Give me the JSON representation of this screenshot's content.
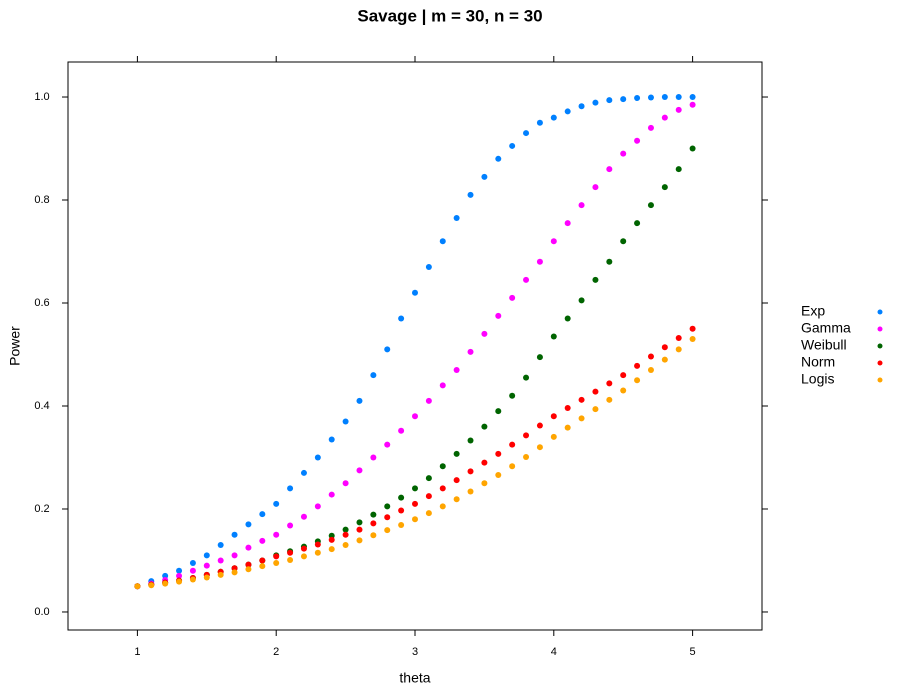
{
  "chart_data": {
    "type": "scatter",
    "title": "Savage | m = 30, n = 30",
    "x_label": "theta",
    "y_label": "Power",
    "x": [
      1.0,
      1.1,
      1.2,
      1.3,
      1.4,
      1.5,
      1.6,
      1.7,
      1.8,
      1.9,
      2.0,
      2.1,
      2.2,
      2.3,
      2.4,
      2.5,
      2.6,
      2.7,
      2.8,
      2.9,
      3.0,
      3.1,
      3.2,
      3.3,
      3.4,
      3.5,
      3.6,
      3.7,
      3.8,
      3.9,
      4.0,
      4.1,
      4.2,
      4.3,
      4.4,
      4.5,
      4.6,
      4.7,
      4.8,
      4.9,
      5.0
    ],
    "series": [
      {
        "name": "Exp",
        "color": "#0080ff",
        "values": [
          0.05,
          0.06,
          0.07,
          0.08,
          0.095,
          0.11,
          0.13,
          0.15,
          0.17,
          0.19,
          0.21,
          0.24,
          0.27,
          0.3,
          0.335,
          0.37,
          0.41,
          0.46,
          0.51,
          0.57,
          0.62,
          0.67,
          0.72,
          0.765,
          0.81,
          0.845,
          0.88,
          0.905,
          0.93,
          0.95,
          0.96,
          0.972,
          0.982,
          0.989,
          0.994,
          0.996,
          0.998,
          0.999,
          1.0,
          1.0,
          1.0
        ]
      },
      {
        "name": "Gamma",
        "color": "#ff00ff",
        "values": [
          0.05,
          0.055,
          0.062,
          0.07,
          0.08,
          0.09,
          0.1,
          0.11,
          0.125,
          0.138,
          0.15,
          0.168,
          0.185,
          0.205,
          0.228,
          0.25,
          0.275,
          0.3,
          0.325,
          0.352,
          0.38,
          0.41,
          0.44,
          0.47,
          0.505,
          0.54,
          0.575,
          0.61,
          0.645,
          0.68,
          0.72,
          0.755,
          0.79,
          0.825,
          0.86,
          0.89,
          0.915,
          0.94,
          0.96,
          0.975,
          0.985
        ]
      },
      {
        "name": "Weibull",
        "color": "#006400",
        "values": [
          0.05,
          0.053,
          0.057,
          0.061,
          0.066,
          0.072,
          0.078,
          0.085,
          0.092,
          0.1,
          0.11,
          0.118,
          0.127,
          0.137,
          0.148,
          0.16,
          0.174,
          0.189,
          0.205,
          0.222,
          0.24,
          0.26,
          0.283,
          0.307,
          0.333,
          0.36,
          0.39,
          0.42,
          0.455,
          0.495,
          0.535,
          0.57,
          0.605,
          0.645,
          0.68,
          0.72,
          0.755,
          0.79,
          0.825,
          0.86,
          0.9
        ]
      },
      {
        "name": "Norm",
        "color": "#ff0000",
        "values": [
          0.05,
          0.053,
          0.057,
          0.061,
          0.066,
          0.072,
          0.078,
          0.085,
          0.092,
          0.1,
          0.108,
          0.115,
          0.123,
          0.131,
          0.14,
          0.15,
          0.16,
          0.172,
          0.184,
          0.197,
          0.21,
          0.225,
          0.24,
          0.256,
          0.273,
          0.29,
          0.307,
          0.325,
          0.343,
          0.362,
          0.38,
          0.396,
          0.412,
          0.428,
          0.444,
          0.46,
          0.478,
          0.496,
          0.514,
          0.532,
          0.55
        ]
      },
      {
        "name": "Logis",
        "color": "#ffa500",
        "values": [
          0.05,
          0.052,
          0.055,
          0.059,
          0.063,
          0.067,
          0.072,
          0.077,
          0.083,
          0.089,
          0.095,
          0.101,
          0.108,
          0.115,
          0.122,
          0.13,
          0.139,
          0.149,
          0.159,
          0.169,
          0.18,
          0.192,
          0.205,
          0.219,
          0.234,
          0.25,
          0.266,
          0.283,
          0.301,
          0.32,
          0.34,
          0.358,
          0.376,
          0.394,
          0.412,
          0.43,
          0.45,
          0.47,
          0.49,
          0.51,
          0.53
        ]
      }
    ],
    "xlim": [
      0.5,
      5.5
    ],
    "ylim": [
      -0.035,
      1.068
    ],
    "xticks": [
      1,
      2,
      3,
      4,
      5
    ],
    "yticks": [
      {
        "value": 0,
        "label": "0.0"
      },
      0.2,
      0.4,
      0.6,
      0.8,
      {
        "value": 1,
        "label": "1.0"
      }
    ],
    "legend": "right",
    "grid": false
  }
}
